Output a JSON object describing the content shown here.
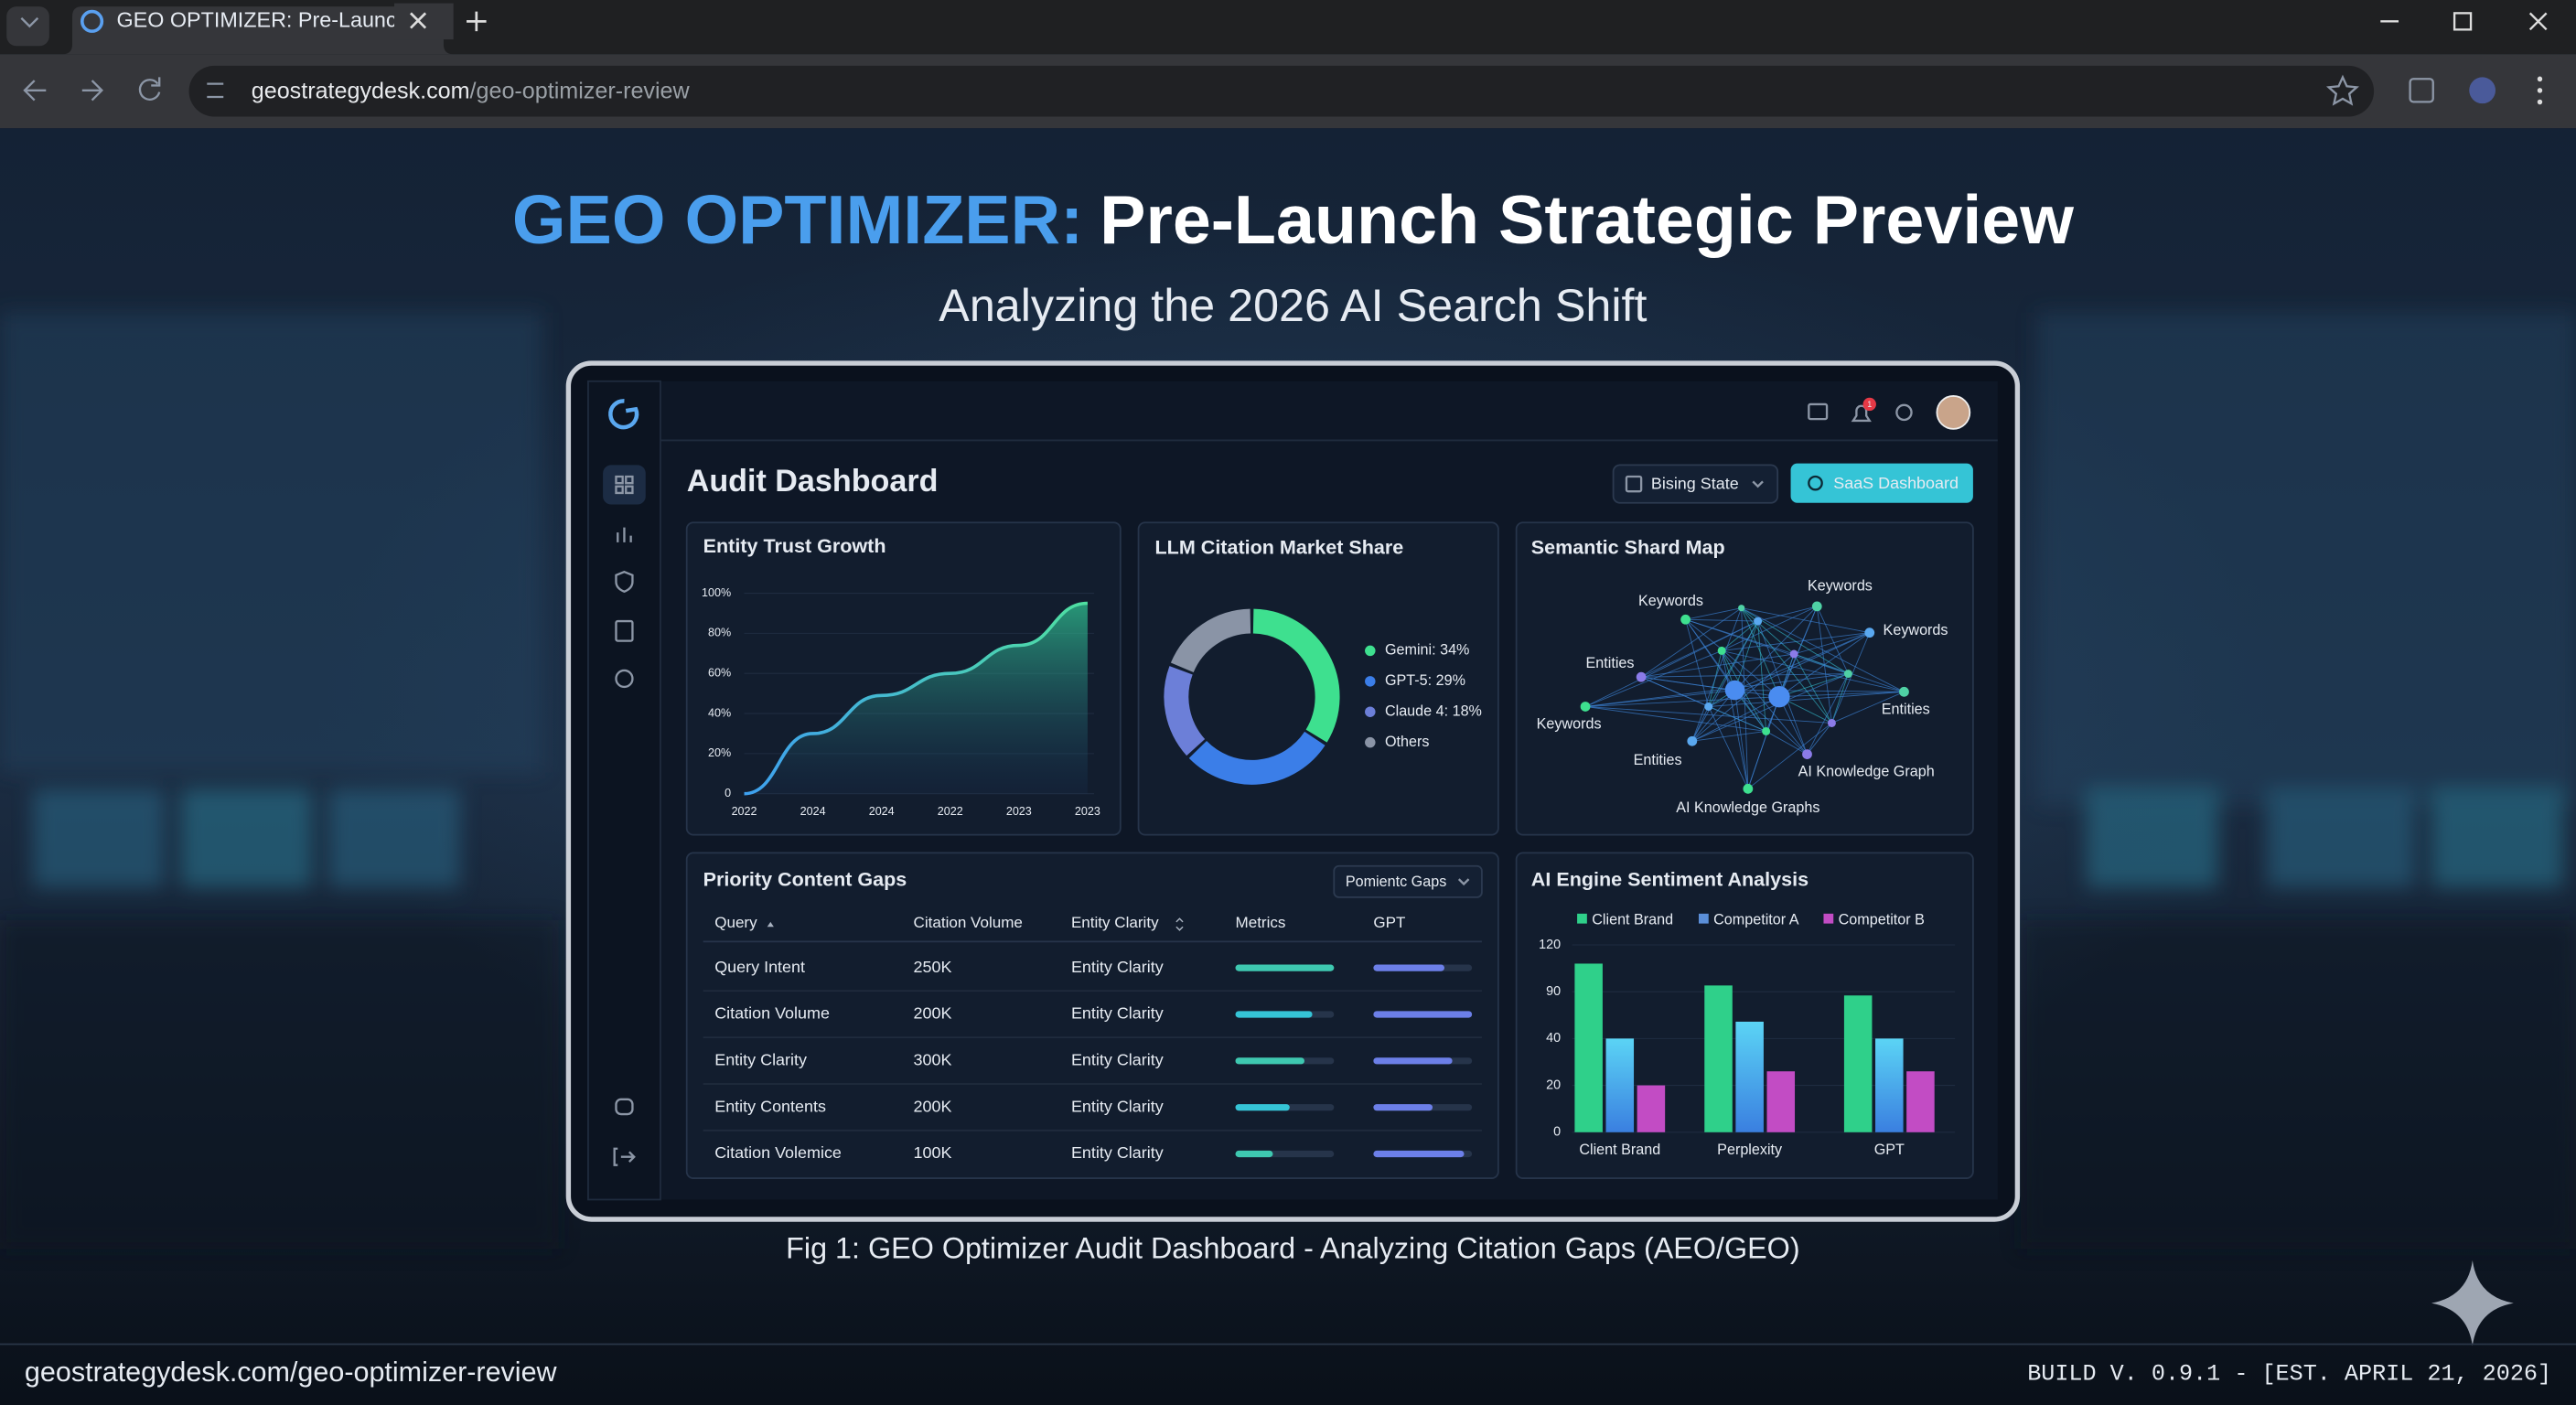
{
  "browser": {
    "tab_title": "GEO OPTIMIZER: Pre-Launch I",
    "url_host": "geostrategydesk.com",
    "url_path": "/geo-optimizer-review"
  },
  "hero": {
    "title_accent": "GEO OPTIMIZER:",
    "title_rest": "Pre-Launch Strategic Preview",
    "subtitle": "Analyzing the 2026 AI Search Shift"
  },
  "dashboard": {
    "title": "Audit Dashboard",
    "state_dropdown": "Bising State",
    "primary_button": "SaaS Dashboard",
    "notification_badge": "1"
  },
  "chart_data": [
    {
      "type": "line",
      "title": "Entity Trust Growth",
      "categories": [
        "2022",
        "2024",
        "2024",
        "2022",
        "2023",
        "2023"
      ],
      "values": [
        0,
        30,
        49,
        60,
        74,
        95
      ],
      "color": "#4fd1a5",
      "ylim": [
        0,
        100
      ],
      "yticks": [
        {
          "value": 100,
          "label": "100%"
        },
        {
          "value": 80,
          "label": "80%"
        },
        {
          "value": 60,
          "label": "60%"
        },
        {
          "value": 40,
          "label": "40%"
        },
        {
          "value": 20,
          "label": "20%"
        },
        0
      ]
    },
    {
      "type": "pie",
      "title": "LLM Citation Market Share",
      "values": [
        34,
        29,
        18,
        19
      ],
      "value_labels": [
        "Gemini: 34%",
        "GPT-5: 29%",
        "Claude 4: 18%",
        "Others"
      ],
      "colors": [
        "#3ee08f",
        "#3b7ee8",
        "#6c7fd8",
        "#8a94a6"
      ]
    },
    {
      "type": "bar",
      "title": "AI Engine Sentiment Analysis",
      "categories": [
        "Client Brand",
        "Perplexity",
        "GPT"
      ],
      "series": [
        {
          "name": "Client Brand",
          "color": "#2fd08a",
          "values": [
            108,
            94,
            86
          ]
        },
        {
          "name": "Competitor A",
          "color": "#5b8fd8",
          "values": [
            40,
            58,
            40
          ]
        },
        {
          "name": "Competitor B",
          "color": "#c24cc4",
          "values": [
            20,
            26,
            26
          ]
        }
      ],
      "ylim": [
        0,
        120
      ],
      "yticks": [
        0,
        20,
        40,
        90,
        120
      ]
    }
  ],
  "semantic_map": {
    "title": "Semantic Shard Map",
    "nodes": [
      "Keywords",
      "Keywords",
      "Keywords",
      "Entities",
      "Keywords",
      "Entities",
      "Entities",
      "AI Knowledge Graph",
      "AI Knowledge Graphs"
    ]
  },
  "content_gaps": {
    "title": "Priority Content Gaps",
    "filter": "Pomientc Gaps",
    "columns": [
      "Query",
      "Citation Volume",
      "Entity Clarity",
      "Metrics",
      "GPT"
    ],
    "rows": [
      [
        "Query Intent",
        "250K",
        "Entity Clarity"
      ],
      [
        "Citation Volume",
        "200K",
        "Entity Clarity"
      ],
      [
        "Entity Clarity",
        "300K",
        "Entity Clarity"
      ],
      [
        "Entity Contents",
        "200K",
        "Entity Clarity"
      ],
      [
        "Citation Volemice",
        "100K",
        "Entity Clarity"
      ]
    ],
    "metrics": [
      100,
      78,
      70,
      55,
      38
    ],
    "gpt": [
      72,
      100,
      80,
      60,
      92
    ],
    "xlim": [
      0,
      100
    ]
  },
  "caption": "Fig 1: GEO Optimizer Audit Dashboard - Analyzing Citation Gaps (AEO/GEO)",
  "footer": {
    "url": "geostrategydesk.com/geo-optimizer-review",
    "build": "BUILD V. 0.9.1 - [EST. APRIL 21, 2026]"
  }
}
